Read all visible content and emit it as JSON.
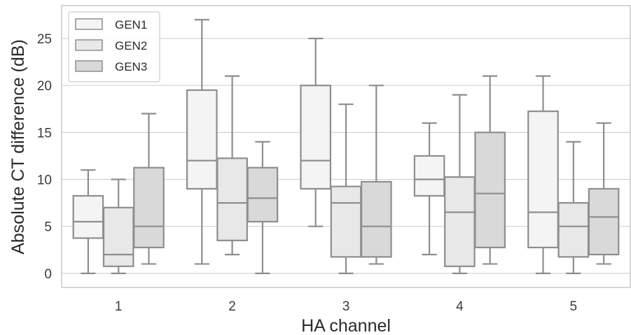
{
  "chart_data": {
    "type": "box",
    "xlabel": "HA channel",
    "ylabel": "Absolute CT difference (dB)",
    "ylim": [
      -1.5,
      28.5
    ],
    "yticks": [
      0,
      5,
      10,
      15,
      20,
      25
    ],
    "categories": [
      "1",
      "2",
      "3",
      "4",
      "5"
    ],
    "grid": "horizontal",
    "legend_position": "top-left",
    "series": [
      {
        "name": "GEN1",
        "color": "#f4f4f4",
        "boxes": [
          {
            "min": 0,
            "q1": 3.75,
            "median": 5.5,
            "q3": 8.25,
            "max": 11
          },
          {
            "min": 1,
            "q1": 9,
            "median": 12,
            "q3": 19.5,
            "max": 27
          },
          {
            "min": 5,
            "q1": 9,
            "median": 12,
            "q3": 20,
            "max": 25
          },
          {
            "min": 2,
            "q1": 8.25,
            "median": 10,
            "q3": 12.5,
            "max": 16
          },
          {
            "min": 0,
            "q1": 2.75,
            "median": 6.5,
            "q3": 17.25,
            "max": 21
          }
        ]
      },
      {
        "name": "GEN2",
        "color": "#e8e8e8",
        "boxes": [
          {
            "min": 0,
            "q1": 0.75,
            "median": 2,
            "q3": 7,
            "max": 10
          },
          {
            "min": 2,
            "q1": 3.5,
            "median": 7.5,
            "q3": 12.25,
            "max": 21
          },
          {
            "min": 0,
            "q1": 1.75,
            "median": 7.5,
            "q3": 9.25,
            "max": 18
          },
          {
            "min": 0,
            "q1": 0.75,
            "median": 6.5,
            "q3": 10.25,
            "max": 19
          },
          {
            "min": 0,
            "q1": 1.75,
            "median": 5,
            "q3": 7.5,
            "max": 14
          }
        ]
      },
      {
        "name": "GEN3",
        "color": "#d9d9d9",
        "boxes": [
          {
            "min": 1,
            "q1": 2.75,
            "median": 5,
            "q3": 11.25,
            "max": 17
          },
          {
            "min": 0,
            "q1": 5.5,
            "median": 8,
            "q3": 11.25,
            "max": 14
          },
          {
            "min": 1,
            "q1": 1.75,
            "median": 5,
            "q3": 9.75,
            "max": 20
          },
          {
            "min": 1,
            "q1": 2.75,
            "median": 8.5,
            "q3": 15,
            "max": 21
          },
          {
            "min": 1,
            "q1": 2,
            "median": 6,
            "q3": 9,
            "max": 16
          }
        ]
      }
    ],
    "colors": {
      "line": "#8e8e8e",
      "grid": "#d3d3d3",
      "frame": "#c8c8c8",
      "text": "#2b2b2b"
    }
  }
}
